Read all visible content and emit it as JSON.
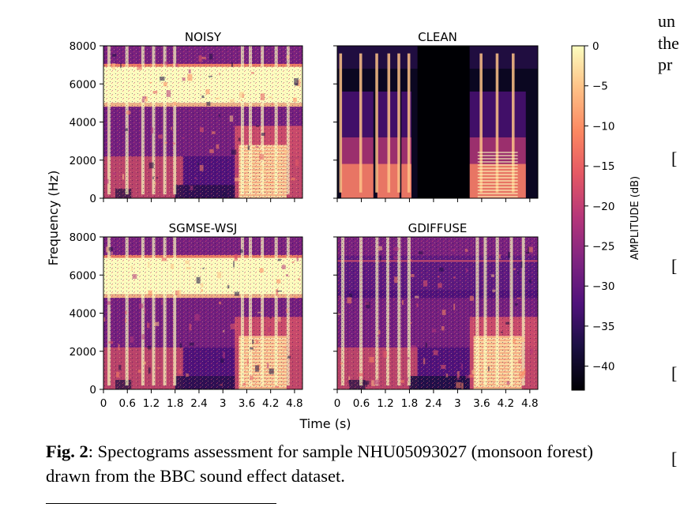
{
  "figure": {
    "caption_label": "Fig. 2",
    "caption_text": ": Spectograms assessment for sample NHU05093027 (monsoon forest) drawn from the BBC sound effect dataset."
  },
  "edge_text": {
    "lines": [
      "un",
      "the",
      "pr"
    ],
    "brackets": [
      "[",
      "[",
      "[",
      "["
    ]
  },
  "chart_data": {
    "type": "heatmap",
    "ylabel": "Frequency (Hz)",
    "xlabel": "Time (s)",
    "x_ticks": [
      0,
      0.6,
      1.2,
      1.8,
      2.4,
      3,
      3.6,
      4.2,
      4.8
    ],
    "x_tick_labels": [
      "0",
      "0.6",
      "1.2",
      "1.8",
      "2.4",
      "3",
      "3.6",
      "4.2",
      "4.8"
    ],
    "y_ticks": [
      0,
      2000,
      4000,
      6000,
      8000
    ],
    "y_tick_labels": [
      "0",
      "2000",
      "4000",
      "6000",
      "8000"
    ],
    "xlim": [
      0,
      5.0
    ],
    "ylim": [
      0,
      8000
    ],
    "colormap": "magma",
    "colorbar": {
      "label": "AMPLITUDE (dB)",
      "ticks": [
        0,
        -5,
        -10,
        -15,
        -20,
        -25,
        -30,
        -35,
        -40
      ],
      "tick_labels": [
        "0",
        "−5",
        "−10",
        "−15",
        "−20",
        "−25",
        "−30",
        "−35",
        "−40"
      ],
      "range": [
        -43,
        0
      ]
    },
    "panels": [
      {
        "title": "NOISY"
      },
      {
        "title": "CLEAN"
      },
      {
        "title": "SGMSE-WSJ"
      },
      {
        "title": "GDIFFUSE"
      }
    ]
  }
}
